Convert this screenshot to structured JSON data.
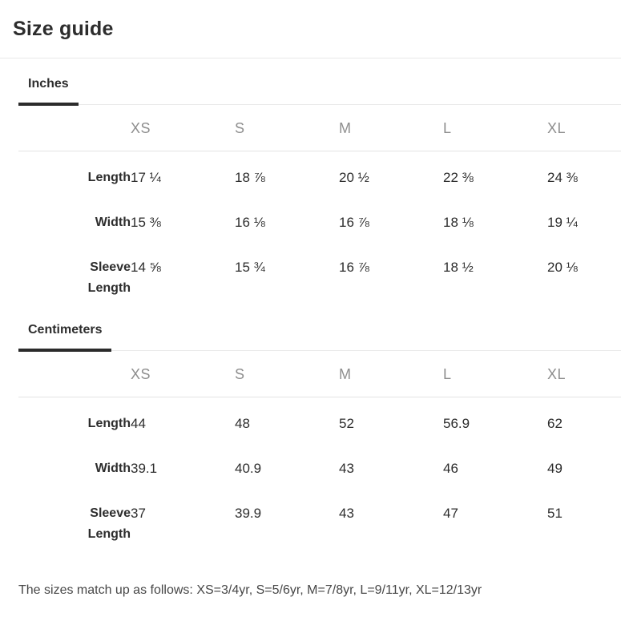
{
  "title": "Size guide",
  "sections": [
    {
      "tab_label": "Inches",
      "columns": [
        "XS",
        "S",
        "M",
        "L",
        "XL"
      ],
      "rows": [
        {
          "label": "Length",
          "values": [
            "17 ¼",
            "18 ⅞",
            "20 ½",
            "22 ⅜",
            "24 ⅜"
          ]
        },
        {
          "label": "Width",
          "values": [
            "15 ⅜",
            "16 ⅛",
            "16 ⅞",
            "18 ⅛",
            "19 ¼"
          ]
        },
        {
          "label": "Sleeve Length",
          "values": [
            "14 ⅝",
            "15 ¾",
            "16 ⅞",
            "18 ½",
            "20 ⅛"
          ]
        }
      ]
    },
    {
      "tab_label": "Centimeters",
      "columns": [
        "XS",
        "S",
        "M",
        "L",
        "XL"
      ],
      "rows": [
        {
          "label": "Length",
          "values": [
            "44",
            "48",
            "52",
            "56.9",
            "62"
          ]
        },
        {
          "label": "Width",
          "values": [
            "39.1",
            "40.9",
            "43",
            "46",
            "49"
          ]
        },
        {
          "label": "Sleeve Length",
          "values": [
            "37",
            "39.9",
            "43",
            "47",
            "51"
          ]
        }
      ]
    }
  ],
  "footnote": "The sizes match up as follows: XS=3/4yr, S=5/6yr, M=7/8yr, L=9/11yr, XL=12/13yr",
  "colors": {
    "text_primary": "#2d2d2d",
    "text_secondary": "#8e8e8e",
    "divider": "#e9e9e9",
    "tab_underline": "#2b2b2b",
    "background": "#ffffff"
  }
}
